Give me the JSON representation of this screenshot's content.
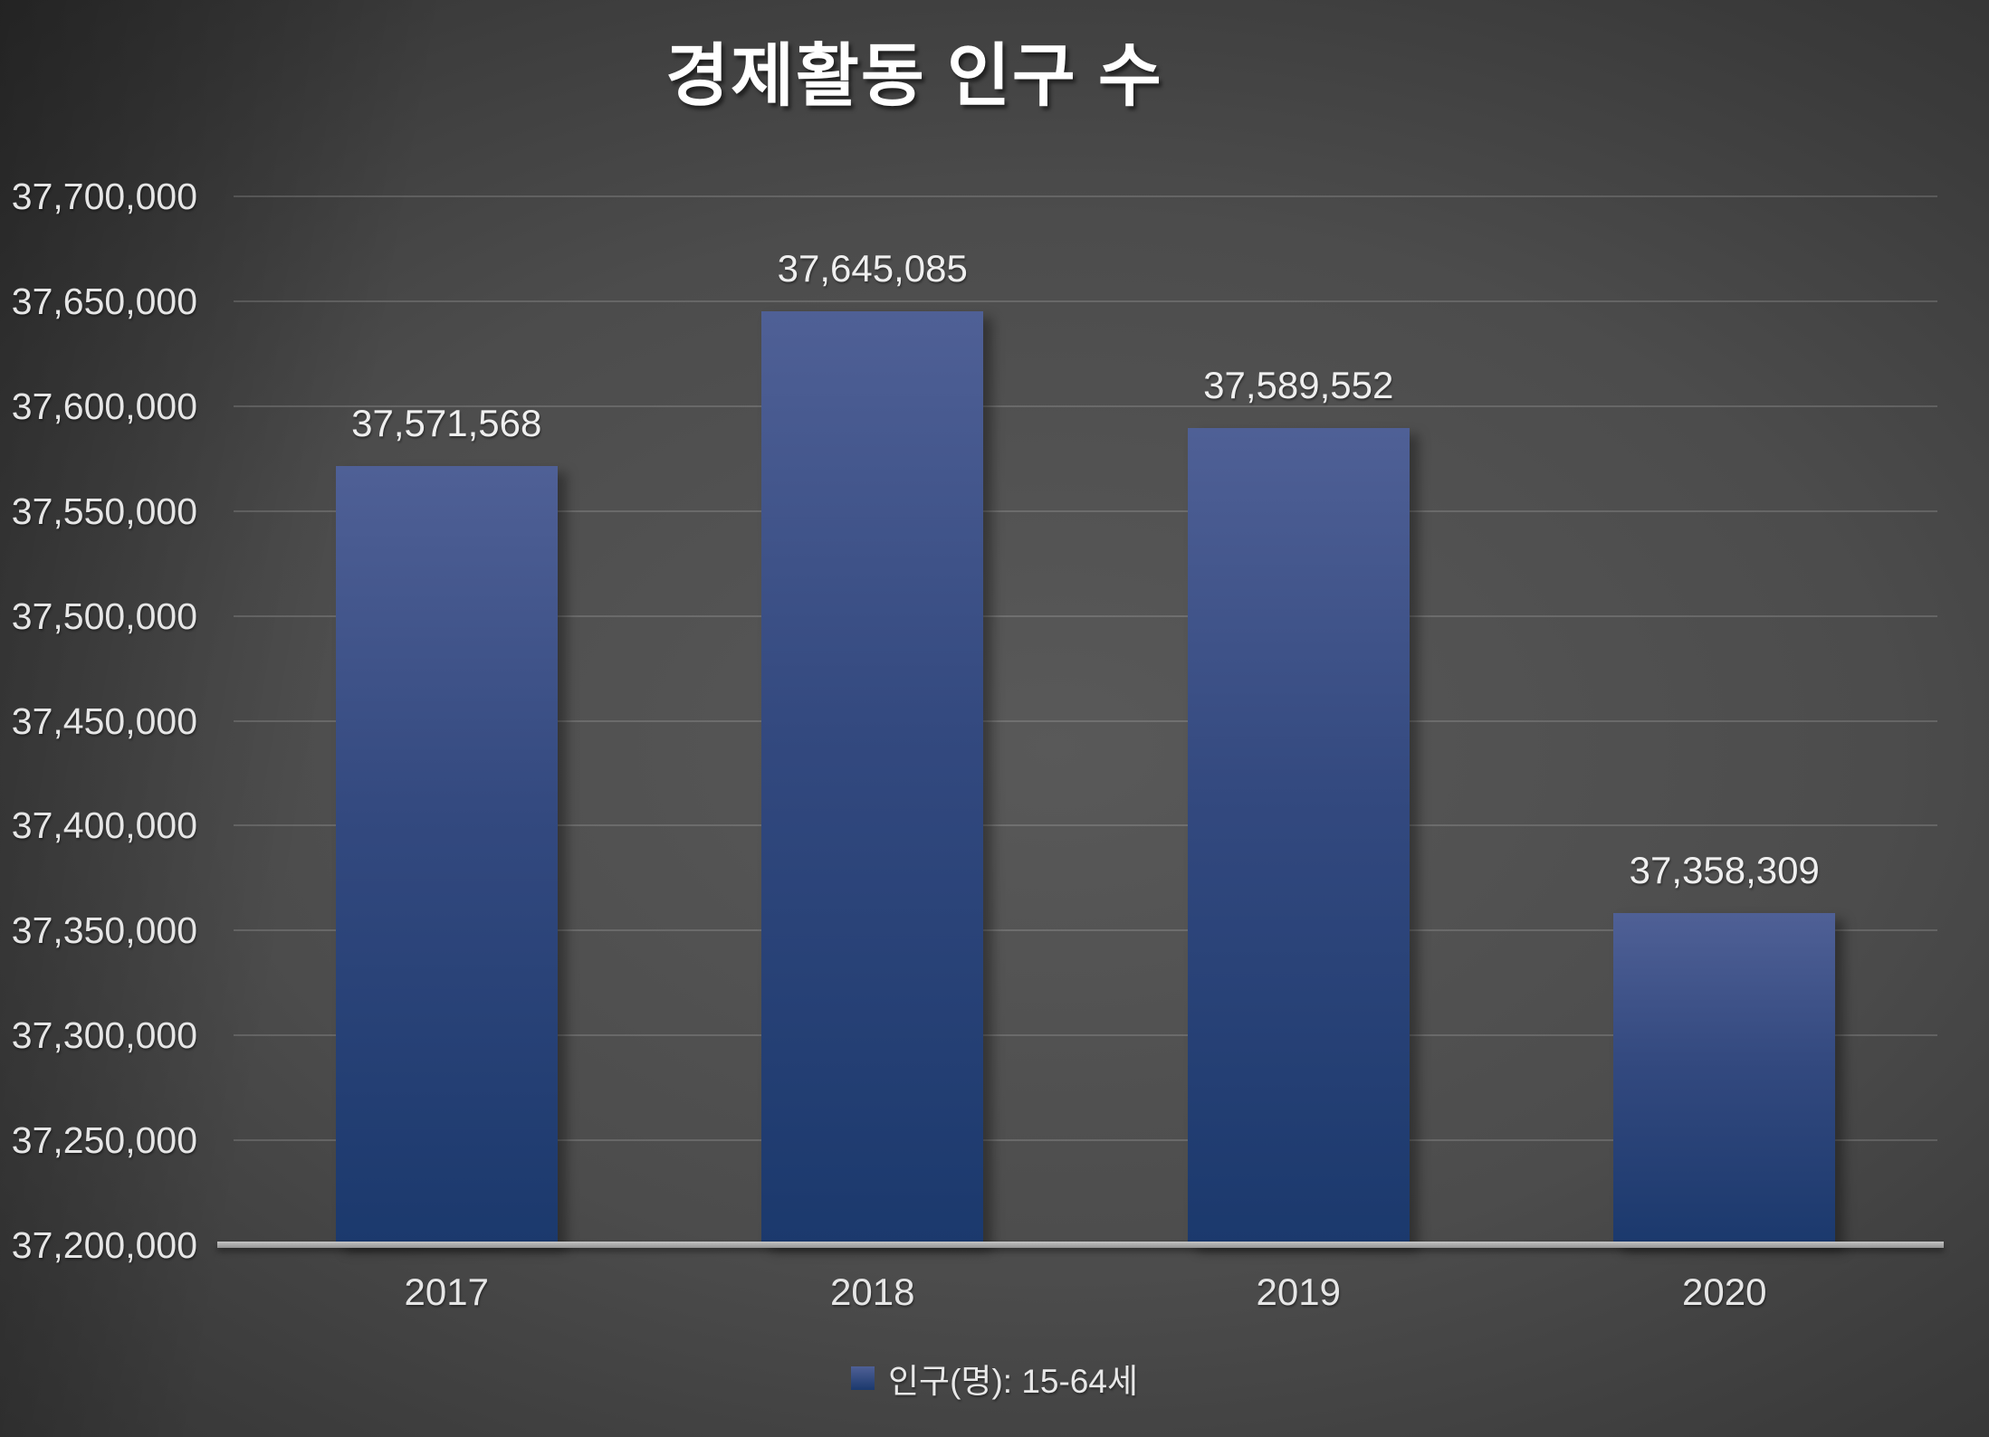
{
  "title": "경제활동 인구 수",
  "legend": {
    "label": "인구(명): 15-64세"
  },
  "colors": {
    "title_text": "#FFFFFF",
    "label_text": "#E6E6E6",
    "bar_top": "#4F6096",
    "bar_mid": "#33497F",
    "bar_bottom": "#1B396D",
    "axis_line": "#ABABAB",
    "gridline_rgba": "rgba(255,255,255,0.15)",
    "background_center": "#595959",
    "background_edge": "#252525"
  },
  "chart_data": {
    "type": "bar",
    "title": "경제활동 인구 수",
    "categories": [
      "2017",
      "2018",
      "2019",
      "2020"
    ],
    "series": [
      {
        "name": "인구(명): 15-64세",
        "values": [
          37571568,
          37645085,
          37589552,
          37358309
        ]
      }
    ],
    "data_labels": [
      "37,571,568",
      "37,645,085",
      "37,589,552",
      "37,358,309"
    ],
    "xlabel": "",
    "ylabel": "",
    "ylim": [
      37200000,
      37700000
    ],
    "ytick_step": 50000,
    "ytick_labels": [
      "37,200,000",
      "37,250,000",
      "37,300,000",
      "37,350,000",
      "37,400,000",
      "37,450,000",
      "37,500,000",
      "37,550,000",
      "37,600,000",
      "37,650,000",
      "37,700,000"
    ],
    "grid": true,
    "legend_position": "bottom"
  }
}
